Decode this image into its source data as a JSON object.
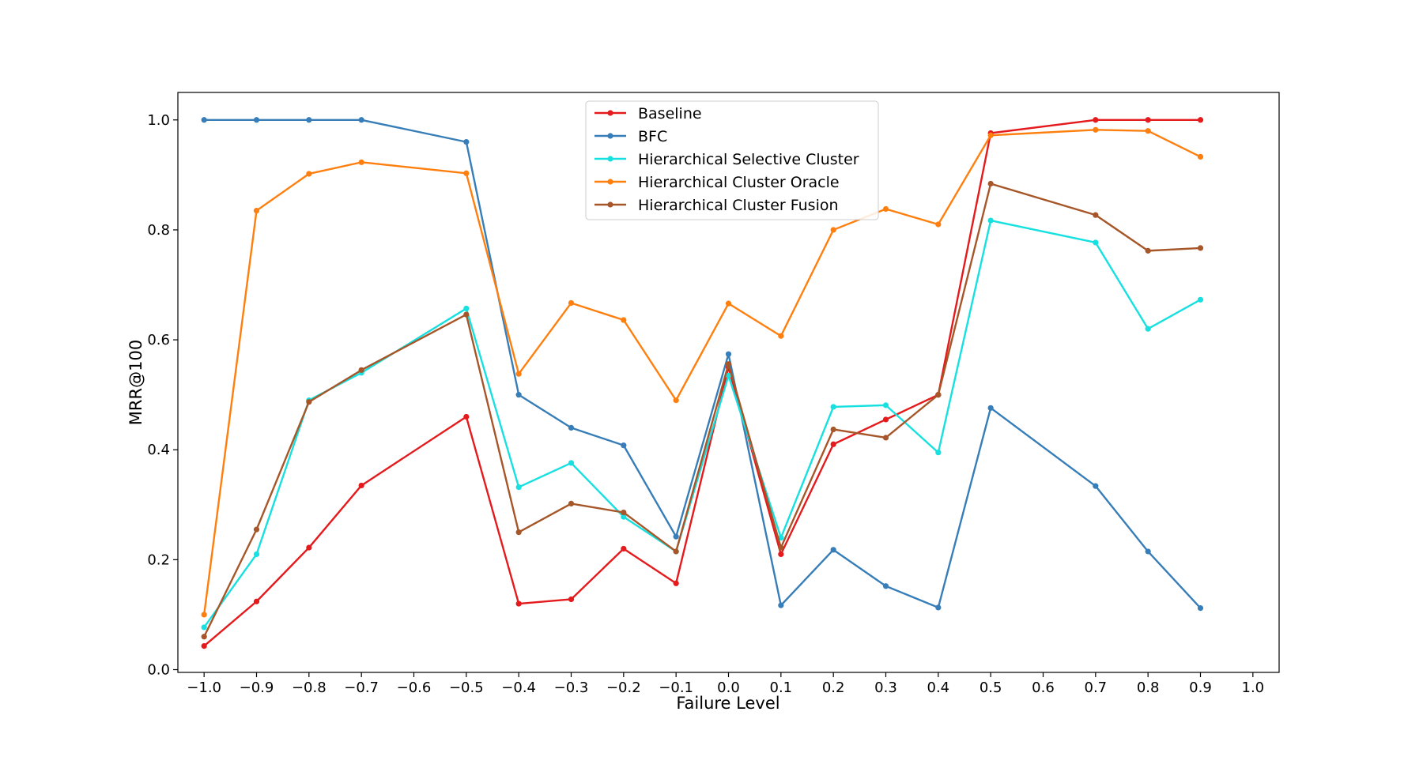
{
  "chart_data": {
    "type": "line",
    "xlabel": "Failure Level",
    "ylabel": "MRR@100",
    "xlim": [
      -1.05,
      1.05
    ],
    "ylim": [
      -0.005,
      1.05
    ],
    "xticks": [
      "−1.0",
      "−0.9",
      "−0.8",
      "−0.7",
      "−0.6",
      "−0.5",
      "−0.4",
      "−0.3",
      "−0.2",
      "−0.1",
      "0.0",
      "0.1",
      "0.2",
      "0.3",
      "0.4",
      "0.5",
      "0.6",
      "0.7",
      "0.8",
      "0.9",
      "1.0"
    ],
    "yticks": [
      "0.0",
      "0.2",
      "0.4",
      "0.6",
      "0.8",
      "1.0"
    ],
    "grid": false,
    "legend_position": "top-center",
    "series": [
      {
        "name": "Baseline",
        "color": "#e41a1c",
        "x": [
          -1.0,
          -0.9,
          -0.8,
          -0.7,
          -0.5,
          -0.4,
          -0.3,
          -0.2,
          -0.1,
          0.0,
          0.1,
          0.2,
          0.3,
          0.4,
          0.5,
          0.7,
          0.8,
          0.9
        ],
        "y": [
          0.043,
          0.124,
          0.222,
          0.335,
          0.46,
          0.12,
          0.128,
          0.22,
          0.157,
          0.55,
          0.21,
          0.41,
          0.455,
          0.5,
          0.976,
          1.0,
          1.0,
          1.0
        ]
      },
      {
        "name": "BFC",
        "color": "#377eb8",
        "x": [
          -1.0,
          -0.9,
          -0.8,
          -0.7,
          -0.5,
          -0.4,
          -0.3,
          -0.2,
          -0.1,
          0.0,
          0.1,
          0.2,
          0.3,
          0.4,
          0.5,
          0.7,
          0.8,
          0.9
        ],
        "y": [
          1.0,
          1.0,
          1.0,
          1.0,
          0.96,
          0.5,
          0.44,
          0.408,
          0.242,
          0.574,
          0.117,
          0.218,
          0.152,
          0.113,
          0.476,
          0.334,
          0.215,
          0.112
        ]
      },
      {
        "name": "Hierarchical Selective Cluster",
        "color": "#17e0e0",
        "x": [
          -1.0,
          -0.9,
          -0.8,
          -0.7,
          -0.5,
          -0.4,
          -0.3,
          -0.2,
          -0.1,
          0.0,
          0.1,
          0.2,
          0.3,
          0.4,
          0.5,
          0.7,
          0.8,
          0.9
        ],
        "y": [
          0.077,
          0.21,
          0.49,
          0.54,
          0.657,
          0.332,
          0.376,
          0.278,
          0.215,
          0.535,
          0.24,
          0.478,
          0.481,
          0.395,
          0.817,
          0.777,
          0.62,
          0.673
        ]
      },
      {
        "name": "Hierarchical Cluster Oracle",
        "color": "#ff7f0e",
        "x": [
          -1.0,
          -0.9,
          -0.8,
          -0.7,
          -0.5,
          -0.4,
          -0.3,
          -0.2,
          -0.1,
          0.0,
          0.1,
          0.2,
          0.3,
          0.4,
          0.5,
          0.7,
          0.8,
          0.9
        ],
        "y": [
          0.1,
          0.835,
          0.902,
          0.923,
          0.903,
          0.538,
          0.667,
          0.636,
          0.49,
          0.666,
          0.607,
          0.8,
          0.838,
          0.81,
          0.972,
          0.982,
          0.98,
          0.933
        ]
      },
      {
        "name": "Hierarchical Cluster Fusion",
        "color": "#a65628",
        "x": [
          -1.0,
          -0.9,
          -0.8,
          -0.7,
          -0.5,
          -0.4,
          -0.3,
          -0.2,
          -0.1,
          0.0,
          0.1,
          0.2,
          0.3,
          0.4,
          0.5,
          0.7,
          0.8,
          0.9
        ],
        "y": [
          0.06,
          0.255,
          0.487,
          0.545,
          0.646,
          0.25,
          0.302,
          0.286,
          0.215,
          0.556,
          0.222,
          0.437,
          0.422,
          0.5,
          0.884,
          0.827,
          0.762,
          0.767
        ]
      }
    ]
  }
}
